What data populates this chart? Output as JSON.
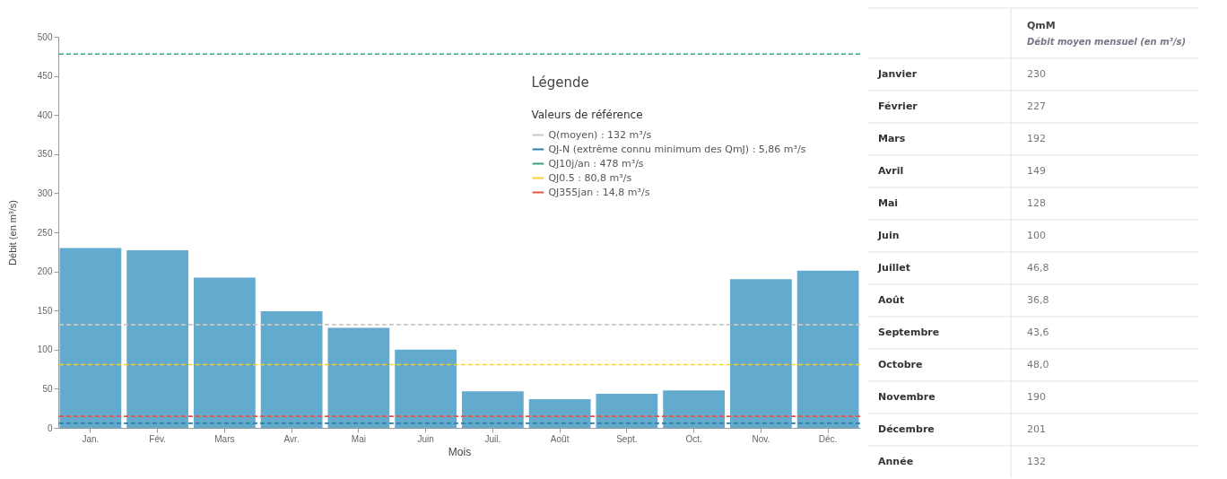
{
  "chart_data": [
    {
      "type": "bar",
      "xlabel": "Mois",
      "ylabel": "Débit (en m³/s)",
      "categories": [
        "Jan.",
        "Fév.",
        "Mars",
        "Avr.",
        "Mai",
        "Juin",
        "Juil.",
        "Août",
        "Sept.",
        "Oct.",
        "Nov.",
        "Déc."
      ],
      "values": [
        230,
        227,
        192,
        149,
        128,
        100,
        46.8,
        36.8,
        43.6,
        48.0,
        190,
        201
      ],
      "color": "#63aacf",
      "ylim": [
        0,
        500
      ],
      "yticks": [
        0,
        50,
        100,
        150,
        200,
        250,
        300,
        350,
        400,
        450,
        500
      ],
      "grid": false,
      "legend": "top right",
      "legend_title": "Valeurs de référence",
      "annotations": [
        "Légende"
      ],
      "ref_lines": [
        {
          "axis": "y",
          "value": 132,
          "label": "Q(moyen) : 132 m³/s",
          "color": "#c8c8c8",
          "line_style": "dashed"
        },
        {
          "axis": "y",
          "value": 5.86,
          "label": "QJ-N (extrême connu minimum des QmJ) : 5,86 m³/s",
          "color": "#2f7fa6",
          "line_style": "dashed"
        },
        {
          "axis": "y",
          "value": 478,
          "label": "QJ10j/an : 478 m³/s",
          "color": "#3a9f80",
          "line_style": "dashed"
        },
        {
          "axis": "y",
          "value": 80.8,
          "label": "QJ0.5 : 80,8 m³/s",
          "color": "#f2d13c",
          "line_style": "dashed"
        },
        {
          "axis": "y",
          "value": 14.8,
          "label": "QJ355jan : 14,8 m³/s",
          "color": "#e0574a",
          "line_style": "dashed"
        }
      ]
    },
    {
      "type": "other",
      "title": "QmM",
      "subtitle": "Débit moyen mensuel (en m³/s)",
      "categories": [
        "Janvier",
        "Février",
        "Mars",
        "Avril",
        "Mai",
        "Juin",
        "Juillet",
        "Août",
        "Septembre",
        "Octobre",
        "Novembre",
        "Décembre",
        "Année"
      ],
      "value_labels": [
        "230",
        "227",
        "192",
        "149",
        "128",
        "100",
        "46,8",
        "36,8",
        "43,6",
        "48,0",
        "190",
        "201",
        "132"
      ]
    }
  ]
}
